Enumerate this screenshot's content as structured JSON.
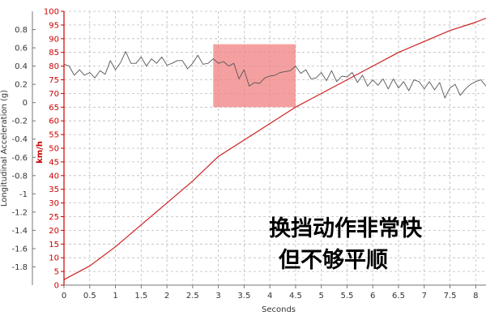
{
  "chart_data": {
    "type": "line",
    "xlabel": "Seconds",
    "y_left_label": "Longitudinal Acceleration (g)",
    "y_right_label": "km/h",
    "x_ticks": [
      "0",
      "0.5",
      "1",
      "1.5",
      "2",
      "2.5",
      "3",
      "3.5",
      "4",
      "4.5",
      "5",
      "5.5",
      "6",
      "6.5",
      "7",
      "7.5",
      "8"
    ],
    "y_left_ticks": [
      "0.8",
      "0.6",
      "0.4",
      "0.2",
      "0",
      "-0.2",
      "-0.4",
      "-0.6",
      "-0.8",
      "-1",
      "-1.2",
      "-1.4",
      "-1.6",
      "-1.8"
    ],
    "y_right_ticks": [
      "100",
      "95",
      "90",
      "85",
      "80",
      "75",
      "70",
      "65",
      "60",
      "55",
      "50",
      "45",
      "40",
      "35",
      "30",
      "25",
      "20",
      "15",
      "10",
      "5",
      "0"
    ],
    "xlim": [
      0,
      8.2
    ],
    "y_left_lim": [
      -2.0,
      1.0
    ],
    "y_right_lim": [
      0,
      100
    ],
    "grid": true,
    "highlight": {
      "x_range": [
        2.9,
        4.5
      ],
      "y_range_kmh": [
        65,
        88
      ],
      "color": "#f08080"
    },
    "series": [
      {
        "axis": "left",
        "color": "#555555",
        "x": [
          0,
          0.1,
          0.2,
          0.3,
          0.4,
          0.5,
          0.6,
          0.7,
          0.8,
          0.9,
          1.0,
          1.1,
          1.2,
          1.3,
          1.4,
          1.5,
          1.6,
          1.7,
          1.8,
          1.9,
          2.0,
          2.1,
          2.2,
          2.3,
          2.4,
          2.5,
          2.6,
          2.7,
          2.8,
          2.9,
          3.0,
          3.1,
          3.2,
          3.3,
          3.4,
          3.5,
          3.6,
          3.7,
          3.8,
          3.9,
          4.0,
          4.1,
          4.2,
          4.3,
          4.4,
          4.5,
          4.6,
          4.7,
          4.8,
          4.9,
          5.0,
          5.1,
          5.2,
          5.3,
          5.4,
          5.5,
          5.6,
          5.7,
          5.8,
          5.9,
          6.0,
          6.1,
          6.2,
          6.3,
          6.4,
          6.5,
          6.6,
          6.7,
          6.8,
          6.9,
          7.0,
          7.1,
          7.2,
          7.3,
          7.4,
          7.5,
          7.6,
          7.7,
          7.8,
          7.9,
          8.0,
          8.1,
          8.2
        ],
        "values": [
          0.42,
          0.4,
          0.3,
          0.36,
          0.3,
          0.33,
          0.27,
          0.35,
          0.31,
          0.46,
          0.36,
          0.44,
          0.56,
          0.43,
          0.43,
          0.5,
          0.4,
          0.48,
          0.43,
          0.5,
          0.41,
          0.43,
          0.46,
          0.46,
          0.37,
          0.43,
          0.52,
          0.42,
          0.43,
          0.48,
          0.43,
          0.45,
          0.4,
          0.43,
          0.26,
          0.36,
          0.18,
          0.22,
          0.21,
          0.27,
          0.29,
          0.3,
          0.33,
          0.34,
          0.35,
          0.4,
          0.32,
          0.36,
          0.26,
          0.27,
          0.33,
          0.24,
          0.35,
          0.23,
          0.29,
          0.28,
          0.33,
          0.22,
          0.3,
          0.18,
          0.25,
          0.19,
          0.26,
          0.15,
          0.26,
          0.16,
          0.23,
          0.13,
          0.25,
          0.23,
          0.15,
          0.23,
          0.14,
          0.22,
          0.05,
          0.16,
          0.2,
          0.08,
          0.15,
          0.2,
          0.23,
          0.25,
          0.18
        ]
      },
      {
        "axis": "right",
        "color": "#cc2020",
        "x": [
          0,
          0.5,
          1.0,
          1.5,
          2.0,
          2.5,
          3.0,
          3.5,
          4.0,
          4.5,
          5.0,
          5.5,
          6.0,
          6.5,
          7.0,
          7.5,
          8.0,
          8.2
        ],
        "values": [
          2,
          7,
          14,
          22,
          30,
          38,
          47,
          53,
          59,
          65,
          70,
          75,
          80,
          85,
          89,
          93,
          96,
          97.5
        ]
      }
    ]
  },
  "annotation": {
    "line1": "换挡动作非常快",
    "line2": "但不够平顺"
  }
}
